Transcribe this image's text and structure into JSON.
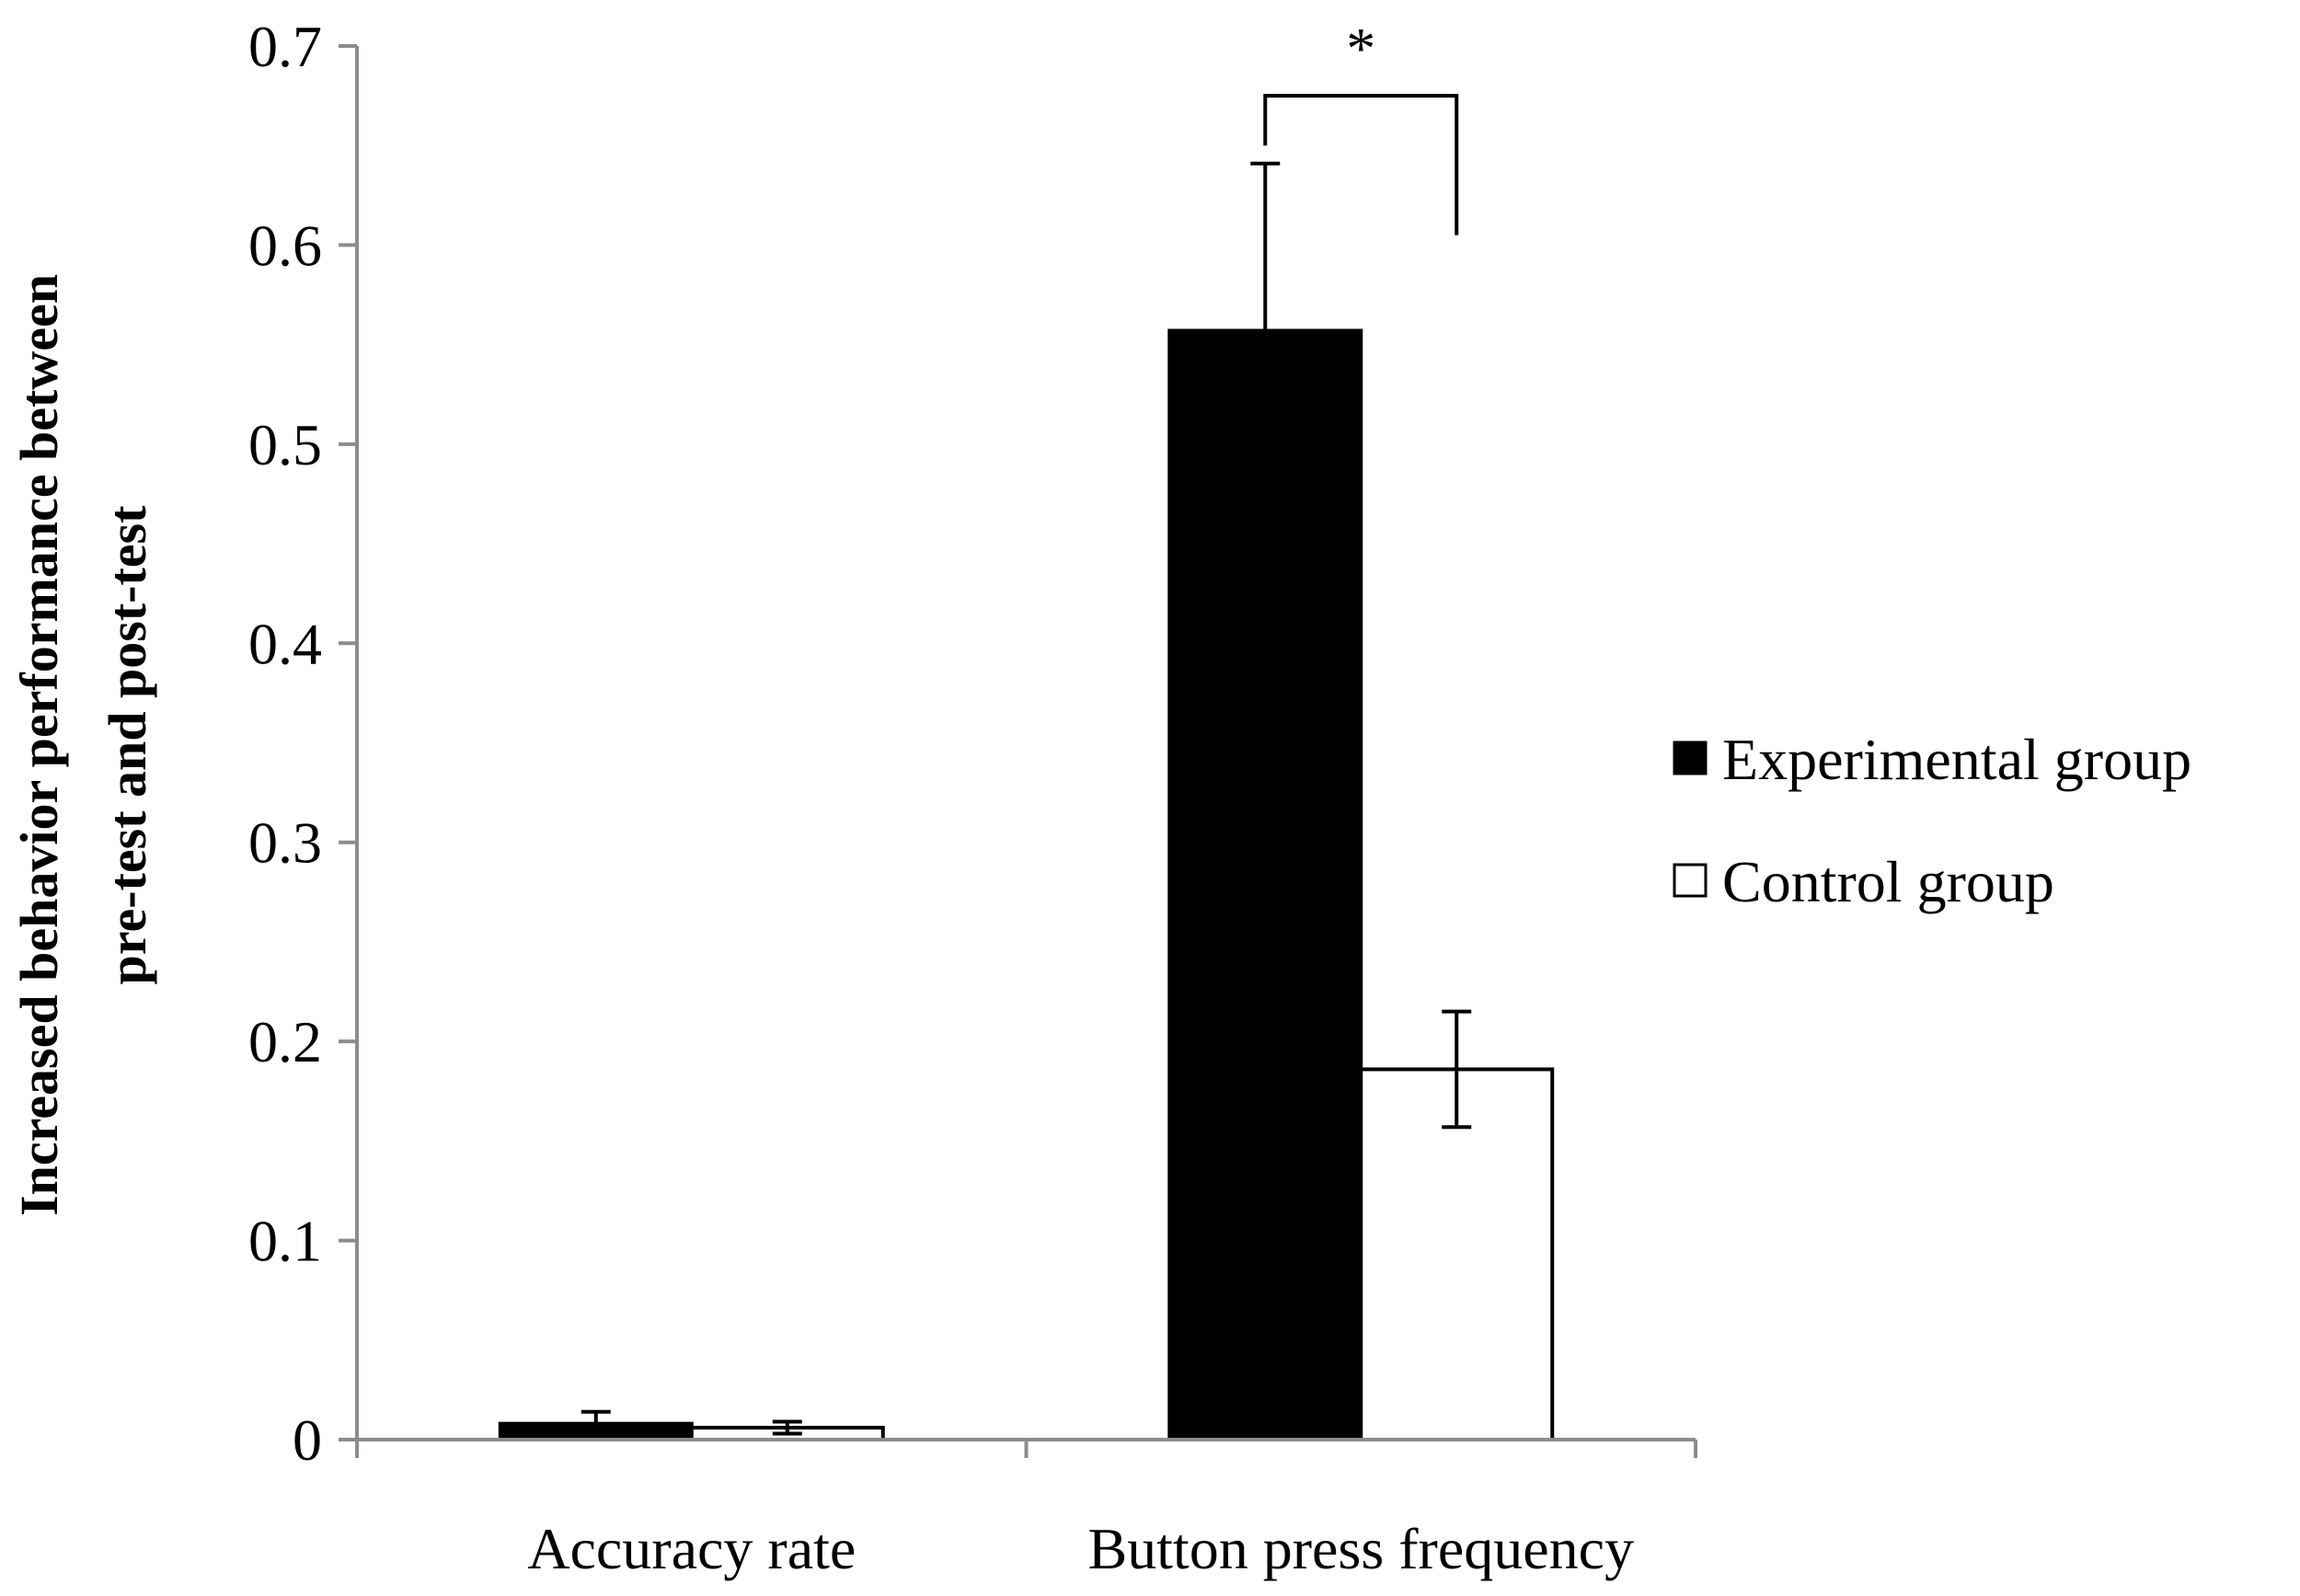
{
  "chart_data": {
    "type": "bar",
    "categories": [
      "Accuracy rate",
      "Button press frequency"
    ],
    "series": [
      {
        "name": "Experimental group",
        "values": [
          0.008,
          0.557
        ],
        "errors": [
          0.006,
          0.084
        ],
        "color": "#000000"
      },
      {
        "name": "Control group",
        "values": [
          0.006,
          0.186
        ],
        "errors": [
          0.003,
          0.029
        ],
        "color": "#ffffff"
      }
    ],
    "ylabel_line1": "Increased behavior performance between",
    "ylabel_line2": "pre-test and post-test",
    "ylim": [
      0,
      0.7
    ],
    "yticks": [
      "0",
      "0.1",
      "0.2",
      "0.3",
      "0.4",
      "0.5",
      "0.6",
      "0.7"
    ],
    "legend_position": "right",
    "significance_marker": "*",
    "grid": false
  }
}
